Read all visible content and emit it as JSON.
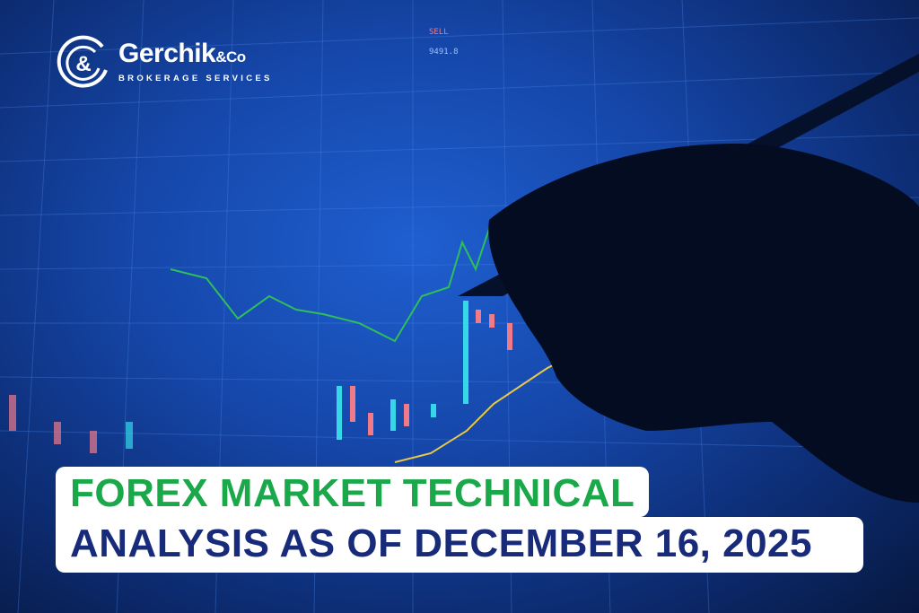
{
  "brand": {
    "name": "Gerchik",
    "name_suffix": "&Co",
    "tagline": "BROKERAGE SERVICES",
    "logo_icon": "gc-ampersand-logo-icon"
  },
  "headline": {
    "line1": "FOREX MARKET TECHNICAL",
    "line2": "ANALYSIS AS OF DECEMBER 16, 2025"
  },
  "screen_text": {
    "sell": "SELL",
    "value": "9491.8"
  },
  "colors": {
    "headline_green": "#1aa84a",
    "headline_navy": "#182a7a",
    "background_blue": "#1546a8",
    "candle_up": "#35d8e8",
    "candle_down": "#f07a8a"
  }
}
